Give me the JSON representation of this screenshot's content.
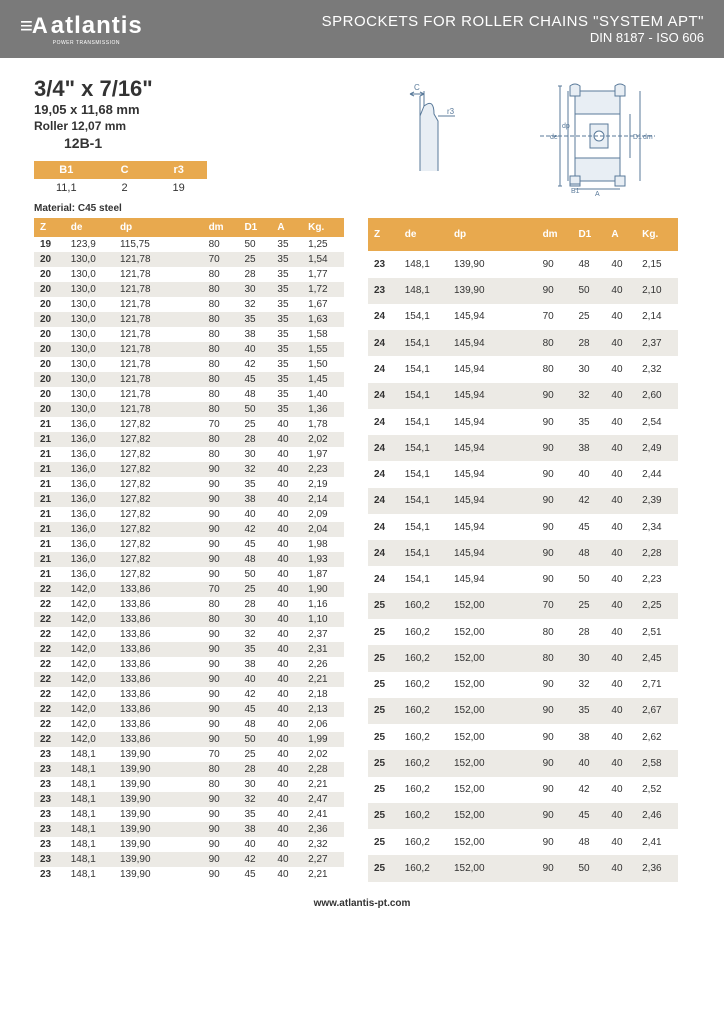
{
  "header": {
    "logo_mark": "≡A",
    "logo_text": "atlantis",
    "logo_sub": "POWER TRANSMISSION",
    "title": "SPROCKETS FOR ROLLER CHAINS \"SYSTEM APT\"",
    "sub": "DIN 8187 - ISO 606"
  },
  "spec": {
    "main": "3/4\" x 7/16\"",
    "sub": "19,05 x 11,68 mm",
    "roller": "Roller 12,07 mm",
    "code": "12B-1"
  },
  "small_table": {
    "headers": [
      "B1",
      "C",
      "r3"
    ],
    "row": [
      "11,1",
      "2",
      "19"
    ]
  },
  "material": "Material: C45 steel",
  "columns": [
    "Z",
    "de",
    "dp",
    "dm",
    "D1",
    "A",
    "Kg."
  ],
  "left_rows": [
    [
      "19",
      "123,9",
      "115,75",
      "80",
      "50",
      "35",
      "1,25"
    ],
    [
      "20",
      "130,0",
      "121,78",
      "70",
      "25",
      "35",
      "1,54"
    ],
    [
      "20",
      "130,0",
      "121,78",
      "80",
      "28",
      "35",
      "1,77"
    ],
    [
      "20",
      "130,0",
      "121,78",
      "80",
      "30",
      "35",
      "1,72"
    ],
    [
      "20",
      "130,0",
      "121,78",
      "80",
      "32",
      "35",
      "1,67"
    ],
    [
      "20",
      "130,0",
      "121,78",
      "80",
      "35",
      "35",
      "1,63"
    ],
    [
      "20",
      "130,0",
      "121,78",
      "80",
      "38",
      "35",
      "1,58"
    ],
    [
      "20",
      "130,0",
      "121,78",
      "80",
      "40",
      "35",
      "1,55"
    ],
    [
      "20",
      "130,0",
      "121,78",
      "80",
      "42",
      "35",
      "1,50"
    ],
    [
      "20",
      "130,0",
      "121,78",
      "80",
      "45",
      "35",
      "1,45"
    ],
    [
      "20",
      "130,0",
      "121,78",
      "80",
      "48",
      "35",
      "1,40"
    ],
    [
      "20",
      "130,0",
      "121,78",
      "80",
      "50",
      "35",
      "1,36"
    ],
    [
      "21",
      "136,0",
      "127,82",
      "70",
      "25",
      "40",
      "1,78"
    ],
    [
      "21",
      "136,0",
      "127,82",
      "80",
      "28",
      "40",
      "2,02"
    ],
    [
      "21",
      "136,0",
      "127,82",
      "80",
      "30",
      "40",
      "1,97"
    ],
    [
      "21",
      "136,0",
      "127,82",
      "90",
      "32",
      "40",
      "2,23"
    ],
    [
      "21",
      "136,0",
      "127,82",
      "90",
      "35",
      "40",
      "2,19"
    ],
    [
      "21",
      "136,0",
      "127,82",
      "90",
      "38",
      "40",
      "2,14"
    ],
    [
      "21",
      "136,0",
      "127,82",
      "90",
      "40",
      "40",
      "2,09"
    ],
    [
      "21",
      "136,0",
      "127,82",
      "90",
      "42",
      "40",
      "2,04"
    ],
    [
      "21",
      "136,0",
      "127,82",
      "90",
      "45",
      "40",
      "1,98"
    ],
    [
      "21",
      "136,0",
      "127,82",
      "90",
      "48",
      "40",
      "1,93"
    ],
    [
      "21",
      "136,0",
      "127,82",
      "90",
      "50",
      "40",
      "1,87"
    ],
    [
      "22",
      "142,0",
      "133,86",
      "70",
      "25",
      "40",
      "1,90"
    ],
    [
      "22",
      "142,0",
      "133,86",
      "80",
      "28",
      "40",
      "1,16"
    ],
    [
      "22",
      "142,0",
      "133,86",
      "80",
      "30",
      "40",
      "1,10"
    ],
    [
      "22",
      "142,0",
      "133,86",
      "90",
      "32",
      "40",
      "2,37"
    ],
    [
      "22",
      "142,0",
      "133,86",
      "90",
      "35",
      "40",
      "2,31"
    ],
    [
      "22",
      "142,0",
      "133,86",
      "90",
      "38",
      "40",
      "2,26"
    ],
    [
      "22",
      "142,0",
      "133,86",
      "90",
      "40",
      "40",
      "2,21"
    ],
    [
      "22",
      "142,0",
      "133,86",
      "90",
      "42",
      "40",
      "2,18"
    ],
    [
      "22",
      "142,0",
      "133,86",
      "90",
      "45",
      "40",
      "2,13"
    ],
    [
      "22",
      "142,0",
      "133,86",
      "90",
      "48",
      "40",
      "2,06"
    ],
    [
      "22",
      "142,0",
      "133,86",
      "90",
      "50",
      "40",
      "1,99"
    ],
    [
      "23",
      "148,1",
      "139,90",
      "70",
      "25",
      "40",
      "2,02"
    ],
    [
      "23",
      "148,1",
      "139,90",
      "80",
      "28",
      "40",
      "2,28"
    ],
    [
      "23",
      "148,1",
      "139,90",
      "80",
      "30",
      "40",
      "2,21"
    ],
    [
      "23",
      "148,1",
      "139,90",
      "90",
      "32",
      "40",
      "2,47"
    ],
    [
      "23",
      "148,1",
      "139,90",
      "90",
      "35",
      "40",
      "2,41"
    ],
    [
      "23",
      "148,1",
      "139,90",
      "90",
      "38",
      "40",
      "2,36"
    ],
    [
      "23",
      "148,1",
      "139,90",
      "90",
      "40",
      "40",
      "2,32"
    ],
    [
      "23",
      "148,1",
      "139,90",
      "90",
      "42",
      "40",
      "2,27"
    ],
    [
      "23",
      "148,1",
      "139,90",
      "90",
      "45",
      "40",
      "2,21"
    ]
  ],
  "right_rows": [
    [
      "23",
      "148,1",
      "139,90",
      "90",
      "48",
      "40",
      "2,15"
    ],
    [
      "23",
      "148,1",
      "139,90",
      "90",
      "50",
      "40",
      "2,10"
    ],
    [
      "24",
      "154,1",
      "145,94",
      "70",
      "25",
      "40",
      "2,14"
    ],
    [
      "24",
      "154,1",
      "145,94",
      "80",
      "28",
      "40",
      "2,37"
    ],
    [
      "24",
      "154,1",
      "145,94",
      "80",
      "30",
      "40",
      "2,32"
    ],
    [
      "24",
      "154,1",
      "145,94",
      "90",
      "32",
      "40",
      "2,60"
    ],
    [
      "24",
      "154,1",
      "145,94",
      "90",
      "35",
      "40",
      "2,54"
    ],
    [
      "24",
      "154,1",
      "145,94",
      "90",
      "38",
      "40",
      "2,49"
    ],
    [
      "24",
      "154,1",
      "145,94",
      "90",
      "40",
      "40",
      "2,44"
    ],
    [
      "24",
      "154,1",
      "145,94",
      "90",
      "42",
      "40",
      "2,39"
    ],
    [
      "24",
      "154,1",
      "145,94",
      "90",
      "45",
      "40",
      "2,34"
    ],
    [
      "24",
      "154,1",
      "145,94",
      "90",
      "48",
      "40",
      "2,28"
    ],
    [
      "24",
      "154,1",
      "145,94",
      "90",
      "50",
      "40",
      "2,23"
    ],
    [
      "25",
      "160,2",
      "152,00",
      "70",
      "25",
      "40",
      "2,25"
    ],
    [
      "25",
      "160,2",
      "152,00",
      "80",
      "28",
      "40",
      "2,51"
    ],
    [
      "25",
      "160,2",
      "152,00",
      "80",
      "30",
      "40",
      "2,45"
    ],
    [
      "25",
      "160,2",
      "152,00",
      "90",
      "32",
      "40",
      "2,71"
    ],
    [
      "25",
      "160,2",
      "152,00",
      "90",
      "35",
      "40",
      "2,67"
    ],
    [
      "25",
      "160,2",
      "152,00",
      "90",
      "38",
      "40",
      "2,62"
    ],
    [
      "25",
      "160,2",
      "152,00",
      "90",
      "40",
      "40",
      "2,58"
    ],
    [
      "25",
      "160,2",
      "152,00",
      "90",
      "42",
      "40",
      "2,52"
    ],
    [
      "25",
      "160,2",
      "152,00",
      "90",
      "45",
      "40",
      "2,46"
    ],
    [
      "25",
      "160,2",
      "152,00",
      "90",
      "48",
      "40",
      "2,41"
    ],
    [
      "25",
      "160,2",
      "152,00",
      "90",
      "50",
      "40",
      "2,36"
    ]
  ],
  "footer": "www.atlantis-pt.com",
  "colors": {
    "header_bg": "#7a7a7a",
    "accent": "#e8a94e",
    "row_alt": "#eceae5",
    "diagram_stroke": "#5a7a9a"
  }
}
